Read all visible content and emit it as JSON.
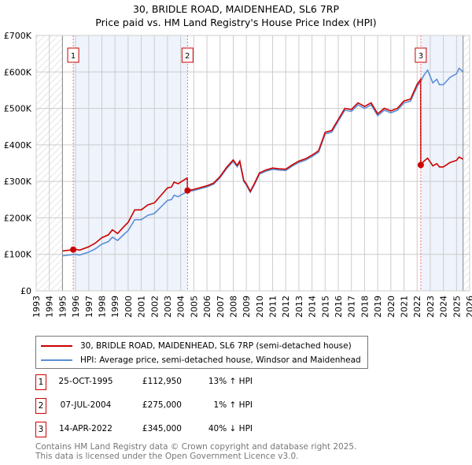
{
  "header": {
    "title": "30, BRIDLE ROAD, MAIDENHEAD, SL6 7RP",
    "subtitle": "Price paid vs. HM Land Registry's House Price Index (HPI)"
  },
  "chart_data": {
    "type": "line",
    "title": "30, BRIDLE ROAD, MAIDENHEAD, SL6 7RP",
    "ylim": [
      0,
      700000
    ],
    "xlim": [
      1993,
      2026
    ],
    "yticks": [
      {
        "v": 0,
        "label": "£0"
      },
      {
        "v": 100000,
        "label": "£100K"
      },
      {
        "v": 200000,
        "label": "£200K"
      },
      {
        "v": 300000,
        "label": "£300K"
      },
      {
        "v": 400000,
        "label": "£400K"
      },
      {
        "v": 500000,
        "label": "£500K"
      },
      {
        "v": 600000,
        "label": "£600K"
      },
      {
        "v": 700000,
        "label": "£700K"
      }
    ],
    "xticks": [
      "1993",
      "1994",
      "1995",
      "1996",
      "1997",
      "1998",
      "1999",
      "2000",
      "2001",
      "2002",
      "2003",
      "2004",
      "2005",
      "2006",
      "2007",
      "2008",
      "2009",
      "2010",
      "2011",
      "2012",
      "2013",
      "2014",
      "2015",
      "2016",
      "2017",
      "2018",
      "2019",
      "2020",
      "2021",
      "2022",
      "2023",
      "2024",
      "2025",
      "2026"
    ],
    "colors": {
      "property": "#cc0000",
      "hpi": "#5b8fd4"
    },
    "hpi": {
      "name": "HPI: Average price, semi-detached house, Windsor and Maidenhead",
      "x": [
        1995,
        1995.5,
        1996,
        1996.3,
        1997,
        1997.5,
        1998,
        1998.5,
        1998.8,
        1999.2,
        1999.6,
        2000,
        2000.5,
        2001,
        2001.5,
        2002,
        2002.5,
        2003,
        2003.3,
        2003.5,
        2003.8,
        2004,
        2004.5,
        2005,
        2005.5,
        2006,
        2006.5,
        2007,
        2007.5,
        2008,
        2008.3,
        2008.5,
        2008.8,
        2009,
        2009.3,
        2009.6,
        2010,
        2010.5,
        2011,
        2011.5,
        2012,
        2012.5,
        2013,
        2013.5,
        2014,
        2014.5,
        2015,
        2015.5,
        2016,
        2016.5,
        2017,
        2017.5,
        2018,
        2018.5,
        2019,
        2019.5,
        2020,
        2020.5,
        2021,
        2021.5,
        2022,
        2022.3,
        2022.5,
        2022.8,
        2023.2,
        2023.5,
        2023.7,
        2024,
        2024.5,
        2025,
        2025.2,
        2025.5
      ],
      "y": [
        96000,
        98000,
        100000,
        98000,
        106000,
        115000,
        128000,
        135000,
        147000,
        138000,
        152000,
        165000,
        195000,
        195000,
        207000,
        212000,
        230000,
        248000,
        250000,
        262000,
        258000,
        262000,
        272000,
        275000,
        280000,
        285000,
        292000,
        310000,
        335000,
        355000,
        340000,
        352000,
        300000,
        290000,
        270000,
        290000,
        320000,
        328000,
        333000,
        331000,
        330000,
        342000,
        352000,
        358000,
        368000,
        380000,
        430000,
        435000,
        465000,
        495000,
        492000,
        510000,
        500000,
        510000,
        480000,
        495000,
        488000,
        495000,
        515000,
        520000,
        560000,
        575000,
        590000,
        605000,
        570000,
        580000,
        565000,
        565000,
        585000,
        595000,
        610000,
        600000
      ]
    },
    "property": {
      "name": "30, BRIDLE ROAD, MAIDENHEAD, SL6 7RP (semi-detached house)"
    },
    "sales": [
      {
        "id": "1",
        "x": 1995.82,
        "date": "25-OCT-1995",
        "price": 112950,
        "price_label": "£112,950",
        "hpi_diff": "13% ↑ HPI"
      },
      {
        "id": "2",
        "x": 2004.52,
        "date": "07-JUL-2004",
        "price": 275000,
        "price_label": "£275,000",
        "hpi_diff": "1% ↑ HPI"
      },
      {
        "id": "3",
        "x": 2022.28,
        "date": "14-APR-2022",
        "price": 345000,
        "price_label": "£345,000",
        "hpi_diff": "40% ↓ HPI"
      }
    ],
    "shaded_ranges": [
      [
        1995.82,
        2004.52
      ],
      [
        2022.28,
        2025.5
      ]
    ],
    "hatched_ranges": [
      [
        1993,
        1995
      ],
      [
        2025.5,
        2026
      ]
    ]
  },
  "footer": {
    "line1": "Contains HM Land Registry data © Crown copyright and database right 2025.",
    "line2": "This data is licensed under the Open Government Licence v3.0."
  }
}
